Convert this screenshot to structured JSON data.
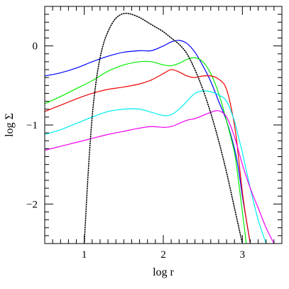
{
  "chart_data": {
    "type": "line",
    "xlabel": "log r",
    "ylabel": "log Σ",
    "xlim": [
      0.5,
      3.5
    ],
    "ylim": [
      -2.5,
      0.5
    ],
    "x_ticks": [
      1,
      2,
      3
    ],
    "x_tick_labels": [
      "1",
      "2",
      "3"
    ],
    "y_ticks": [
      0,
      -1,
      -2
    ],
    "y_tick_labels": [
      "0",
      "−1",
      "−2"
    ],
    "grid": false,
    "legend": "none",
    "series": [
      {
        "color": "#0000ff",
        "style": "solid",
        "x": [
          0.5,
          0.7,
          0.9,
          1.1,
          1.3,
          1.5,
          1.7,
          1.85,
          2.0,
          2.1,
          2.2,
          2.3,
          2.4,
          2.5,
          2.6,
          2.7,
          2.8,
          2.9,
          2.95,
          3.0,
          3.05,
          3.1
        ],
        "y": [
          -0.38,
          -0.34,
          -0.28,
          -0.2,
          -0.13,
          -0.08,
          -0.06,
          -0.06,
          0.0,
          0.05,
          0.07,
          0.03,
          -0.08,
          -0.25,
          -0.45,
          -0.7,
          -0.95,
          -1.3,
          -1.55,
          -1.9,
          -2.2,
          -2.5
        ]
      },
      {
        "color": "#00ee00",
        "style": "solid",
        "x": [
          0.5,
          0.7,
          0.9,
          1.1,
          1.3,
          1.5,
          1.7,
          1.85,
          2.0,
          2.1,
          2.2,
          2.3,
          2.4,
          2.5,
          2.6,
          2.7,
          2.8,
          2.9,
          2.95,
          3.0,
          3.05
        ],
        "y": [
          -0.73,
          -0.64,
          -0.54,
          -0.44,
          -0.32,
          -0.24,
          -0.2,
          -0.2,
          -0.24,
          -0.25,
          -0.22,
          -0.17,
          -0.15,
          -0.2,
          -0.35,
          -0.6,
          -0.95,
          -1.35,
          -1.7,
          -2.1,
          -2.5
        ]
      },
      {
        "color": "#ee0000",
        "style": "solid",
        "x": [
          0.5,
          0.7,
          0.9,
          1.1,
          1.3,
          1.5,
          1.7,
          1.85,
          2.0,
          2.1,
          2.2,
          2.3,
          2.4,
          2.5,
          2.6,
          2.7,
          2.8,
          2.9,
          2.95,
          3.0,
          3.05,
          3.1
        ],
        "y": [
          -0.83,
          -0.75,
          -0.67,
          -0.6,
          -0.55,
          -0.52,
          -0.48,
          -0.43,
          -0.35,
          -0.3,
          -0.33,
          -0.38,
          -0.4,
          -0.38,
          -0.38,
          -0.42,
          -0.55,
          -1.0,
          -1.4,
          -1.85,
          -2.2,
          -2.5
        ]
      },
      {
        "color": "#00eeee",
        "style": "solid",
        "x": [
          0.5,
          0.7,
          0.9,
          1.1,
          1.3,
          1.5,
          1.7,
          1.85,
          2.0,
          2.1,
          2.2,
          2.3,
          2.4,
          2.5,
          2.6,
          2.7,
          2.8,
          2.9,
          2.95,
          3.0,
          3.1,
          3.2,
          3.3
        ],
        "y": [
          -1.12,
          -1.06,
          -0.98,
          -0.9,
          -0.83,
          -0.8,
          -0.8,
          -0.84,
          -0.88,
          -0.87,
          -0.8,
          -0.7,
          -0.6,
          -0.57,
          -0.58,
          -0.62,
          -0.7,
          -0.95,
          -1.15,
          -1.35,
          -1.8,
          -2.2,
          -2.5
        ]
      },
      {
        "color": "#ee00ee",
        "style": "solid",
        "x": [
          0.5,
          0.7,
          0.9,
          1.1,
          1.3,
          1.5,
          1.7,
          1.85,
          2.0,
          2.1,
          2.2,
          2.3,
          2.4,
          2.5,
          2.6,
          2.7,
          2.8,
          2.9,
          3.0,
          3.1,
          3.2,
          3.3,
          3.4
        ],
        "y": [
          -1.32,
          -1.27,
          -1.22,
          -1.17,
          -1.12,
          -1.08,
          -1.04,
          -1.02,
          -1.03,
          -1.02,
          -0.98,
          -0.94,
          -0.92,
          -0.88,
          -0.84,
          -0.82,
          -0.9,
          -1.15,
          -1.5,
          -1.8,
          -2.05,
          -2.3,
          -2.5
        ]
      },
      {
        "color": "#000000",
        "style": "dotted",
        "x": [
          1.0,
          1.05,
          1.1,
          1.15,
          1.2,
          1.25,
          1.3,
          1.35,
          1.4,
          1.45,
          1.5,
          1.55,
          1.6,
          1.7,
          1.8,
          1.9,
          2.0,
          2.1,
          2.2,
          2.3,
          2.4,
          2.5,
          2.6,
          2.7,
          2.8,
          2.9,
          3.0
        ],
        "y": [
          -2.5,
          -1.6,
          -0.9,
          -0.45,
          -0.15,
          0.05,
          0.18,
          0.28,
          0.35,
          0.39,
          0.41,
          0.41,
          0.4,
          0.36,
          0.3,
          0.24,
          0.18,
          0.1,
          0.02,
          -0.1,
          -0.3,
          -0.55,
          -0.85,
          -1.2,
          -1.6,
          -2.05,
          -2.5
        ]
      }
    ]
  }
}
